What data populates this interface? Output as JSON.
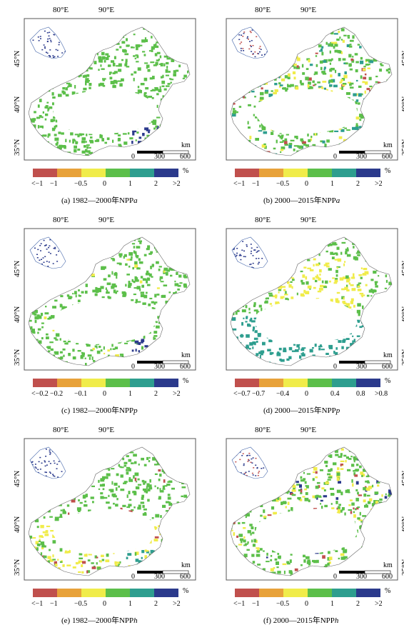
{
  "panels": [
    {
      "id": "a",
      "lon": [
        "80°E",
        "90°E"
      ],
      "lat": [
        "45°N",
        "40°N",
        "35°N"
      ],
      "lat_side": "left",
      "scale": {
        "unit": "km",
        "labels": [
          "0",
          "300",
          "600"
        ]
      },
      "legend": {
        "ticks": [
          "<−1",
          "−1",
          "−0.5",
          "0",
          "1",
          "2",
          ">2"
        ],
        "unit": "%"
      },
      "caption": {
        "prefix": "(a) 1982—2000年NPP",
        "var": "a"
      }
    },
    {
      "id": "b",
      "lon": [
        "80°E",
        "90°E"
      ],
      "lat": [
        "45°N",
        "40°N",
        "35°N"
      ],
      "lat_side": "right",
      "scale": {
        "unit": "km",
        "labels": [
          "0",
          "300",
          "600"
        ]
      },
      "legend": {
        "ticks": [
          "<−1",
          "−1",
          "−0.5",
          "0",
          "1",
          "2",
          ">2"
        ],
        "unit": "%"
      },
      "caption": {
        "prefix": "(b) 2000—2015年NPP",
        "var": "a"
      }
    },
    {
      "id": "c",
      "lon": [
        "80°E",
        "90°E"
      ],
      "lat": [
        "45°N",
        "40°N",
        "35°N"
      ],
      "lat_side": "left",
      "scale": {
        "unit": "km",
        "labels": [
          "0",
          "300",
          "600"
        ]
      },
      "legend": {
        "ticks": [
          "<−0.2",
          "−0.2",
          "−0.1",
          "0",
          "1",
          "2",
          ">2"
        ],
        "unit": "%"
      },
      "caption": {
        "prefix": "(c) 1982—2000年NPP",
        "var": "p"
      }
    },
    {
      "id": "d",
      "lon": [
        "80°E",
        "90°E"
      ],
      "lat": [
        "45°N",
        "40°N",
        "35°N"
      ],
      "lat_side": "right",
      "scale": {
        "unit": "km",
        "labels": [
          "0",
          "300",
          "600"
        ]
      },
      "legend": {
        "ticks": [
          "<−0.7",
          "−0.7",
          "−0.4",
          "0",
          "0.4",
          "0.8",
          ">0.8"
        ],
        "unit": "%"
      },
      "caption": {
        "prefix": "(d) 2000—2015年NPP",
        "var": "p"
      }
    },
    {
      "id": "e",
      "lon": [
        "80°E",
        "90°E"
      ],
      "lat": [
        "45°N",
        "40°N",
        "35°N"
      ],
      "lat_side": "left",
      "scale": {
        "unit": "km",
        "labels": [
          "0",
          "300",
          "600"
        ]
      },
      "legend": {
        "ticks": [
          "<−1",
          "−1",
          "−0.5",
          "0",
          "1",
          "2",
          ">2"
        ],
        "unit": "%"
      },
      "caption": {
        "prefix": "(e) 1982—2000年NPP",
        "var": "h"
      }
    },
    {
      "id": "f",
      "lon": [
        "80°E",
        "90°E"
      ],
      "lat": [
        "45°N",
        "40°N",
        "35°N"
      ],
      "lat_side": "right",
      "scale": {
        "unit": "km",
        "labels": [
          "0",
          "300",
          "600"
        ]
      },
      "legend": {
        "ticks": [
          "<−1",
          "−1",
          "−0.5",
          "0",
          "1",
          "2",
          ">2"
        ],
        "unit": "%"
      },
      "caption": {
        "prefix": "(f) 2000—2015年NPP",
        "var": "h"
      }
    }
  ],
  "colors": {
    "classes": [
      "#c0504d",
      "#e8a23a",
      "#f0ec4a",
      "#5cbf4a",
      "#2e9e8f",
      "#2b3a8c"
    ],
    "frame": "#555555",
    "outline": "#666666"
  }
}
